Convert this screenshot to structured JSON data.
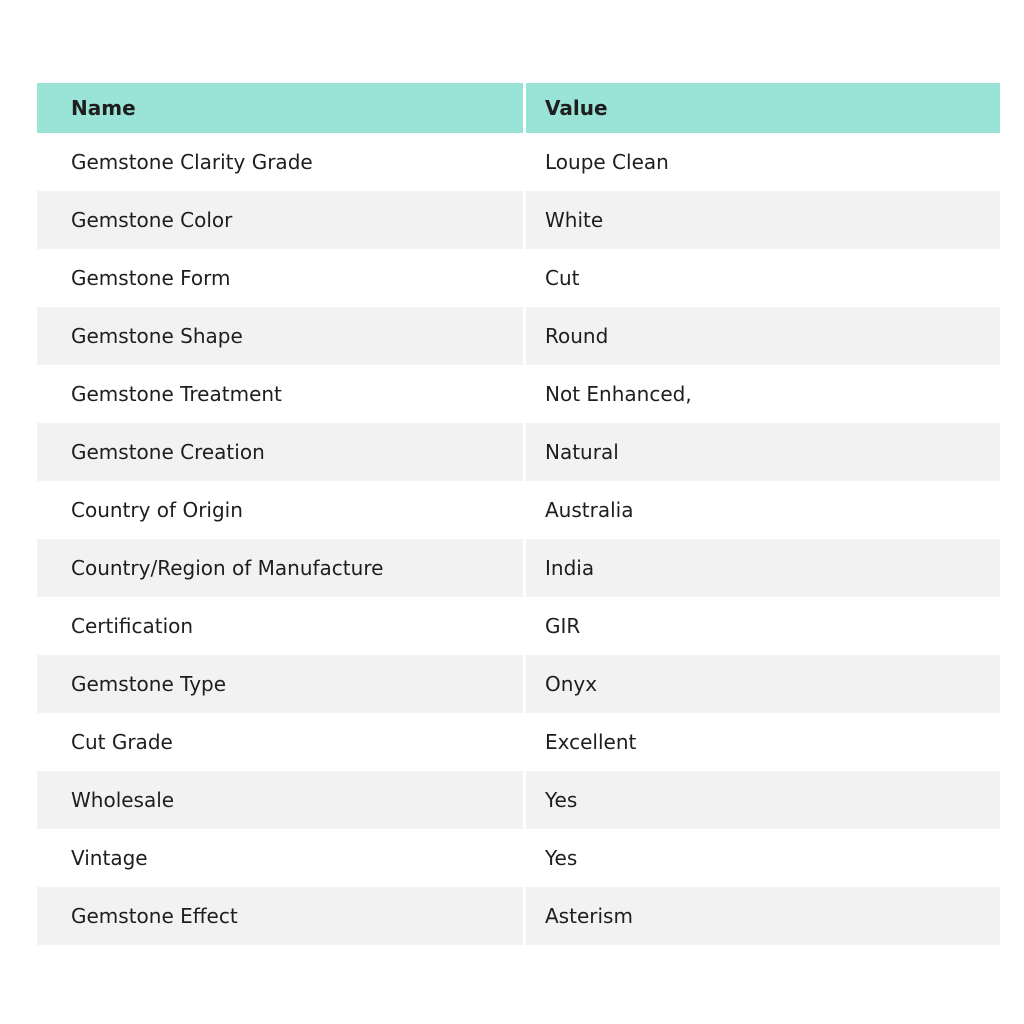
{
  "colors": {
    "header_bg": "#9ae3d7",
    "alt_row_bg": "#f2f2f2",
    "text": "#1e1e1e"
  },
  "table": {
    "columns": {
      "name": "Name",
      "value": "Value"
    },
    "rows": [
      {
        "name": "Gemstone Clarity Grade",
        "value": "Loupe Clean"
      },
      {
        "name": "Gemstone Color",
        "value": "White"
      },
      {
        "name": "Gemstone Form",
        "value": "Cut"
      },
      {
        "name": "Gemstone Shape",
        "value": "Round"
      },
      {
        "name": "Gemstone Treatment",
        "value": "Not Enhanced,"
      },
      {
        "name": "Gemstone Creation",
        "value": "Natural"
      },
      {
        "name": "Country of Origin",
        "value": "Australia"
      },
      {
        "name": "Country/Region of Manufacture",
        "value": "India"
      },
      {
        "name": "Certification",
        "value": "GIR"
      },
      {
        "name": "Gemstone Type",
        "value": "Onyx"
      },
      {
        "name": "Cut Grade",
        "value": "Excellent"
      },
      {
        "name": "Wholesale",
        "value": "Yes"
      },
      {
        "name": "Vintage",
        "value": "Yes"
      },
      {
        "name": "Gemstone Effect",
        "value": "Asterism"
      }
    ]
  }
}
